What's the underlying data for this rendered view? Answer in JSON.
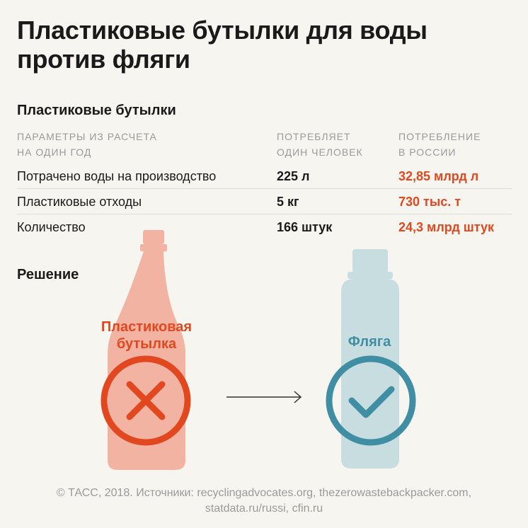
{
  "title": "Пластиковые бутылки для воды против фляги",
  "section_bottles": "Пластиковые бутылки",
  "headers": {
    "col1": [
      "ПАРАМЕТРЫ ИЗ РАСЧЕТА",
      "НА ОДИН ГОД"
    ],
    "col2": [
      "ПОТРЕБЛЯЕТ",
      "ОДИН ЧЕЛОВЕК"
    ],
    "col3": [
      "ПОТРЕБЛЕНИЕ",
      "В РОССИИ"
    ]
  },
  "rows": [
    {
      "param": "Потрачено воды на производство",
      "person": "225 л",
      "russia": "32,85 млрд л"
    },
    {
      "param": "Пластиковые отходы",
      "person": "5 кг",
      "russia": "730 тыс. т"
    },
    {
      "param": "Количество",
      "person": "166 штук",
      "russia": "24,3 млрд штук"
    }
  ],
  "section_solution": "Решение",
  "bottle_label": [
    "Пластиковая",
    "бутылка"
  ],
  "flask_label": "Фляга",
  "icons": {
    "bad": "cross-circle-icon",
    "good": "check-circle-icon",
    "arrow": "arrow-right-icon"
  },
  "colors": {
    "accent_red": "#e1481f",
    "accent_blue": "#3f8ea3",
    "bottle_fill": "#f3b3a3",
    "flask_fill": "#c8dde0",
    "background": "#f6f5f0"
  },
  "footer": [
    "© ТАСС, 2018. Источники: recyclingadvocates.org, thezerowastebackpacker.com,",
    "statdata.ru/russi, cfin.ru"
  ]
}
